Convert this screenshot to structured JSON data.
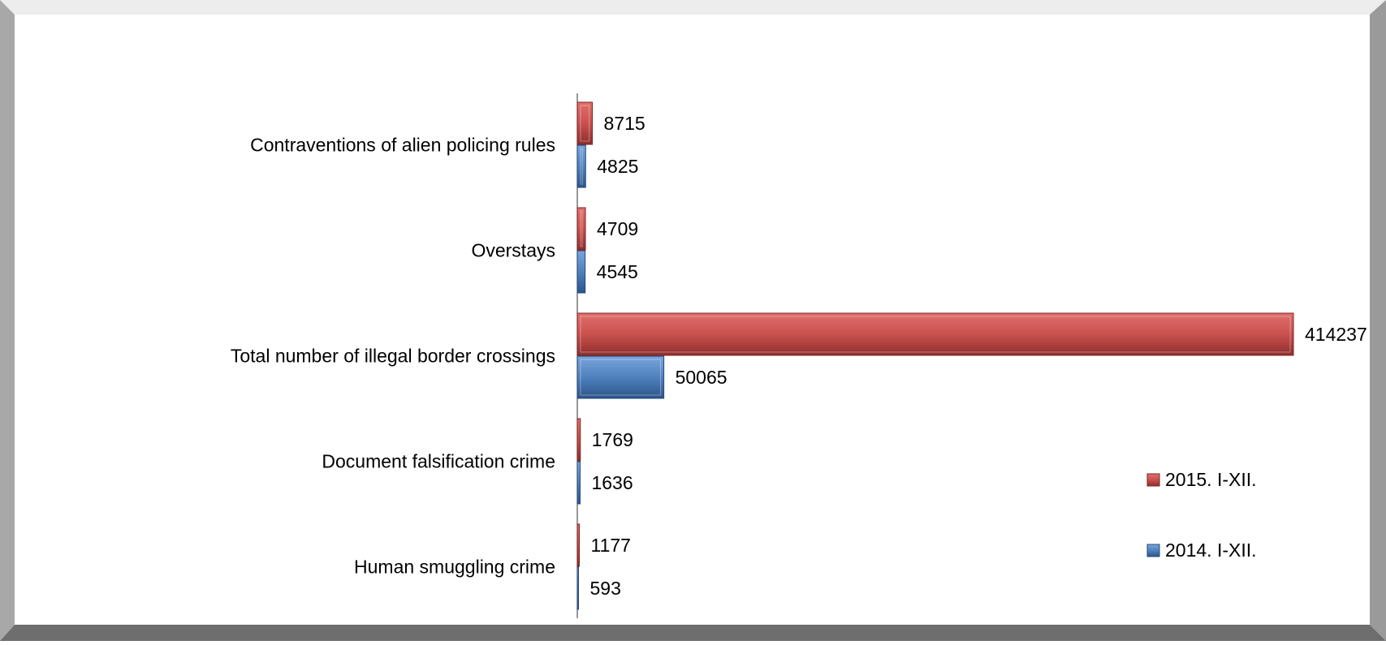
{
  "chart_data": {
    "type": "bar",
    "orientation": "horizontal",
    "categories": [
      "Contraventions of alien policing rules",
      "Overstays",
      "Total number of illegal border crossings",
      "Document falsification crime",
      "Human smuggling crime"
    ],
    "series": [
      {
        "name": "2015. I-XII.",
        "color": "#c0504d",
        "values": [
          8715,
          4709,
          414237,
          1769,
          1177
        ]
      },
      {
        "name": "2014. I-XII.",
        "color": "#4f81bd",
        "values": [
          4825,
          4545,
          50065,
          1636,
          593
        ]
      }
    ],
    "title": "",
    "xlabel": "",
    "ylabel": "",
    "xlim": [
      0,
      414237
    ],
    "grid": false,
    "legend_position": "right"
  }
}
